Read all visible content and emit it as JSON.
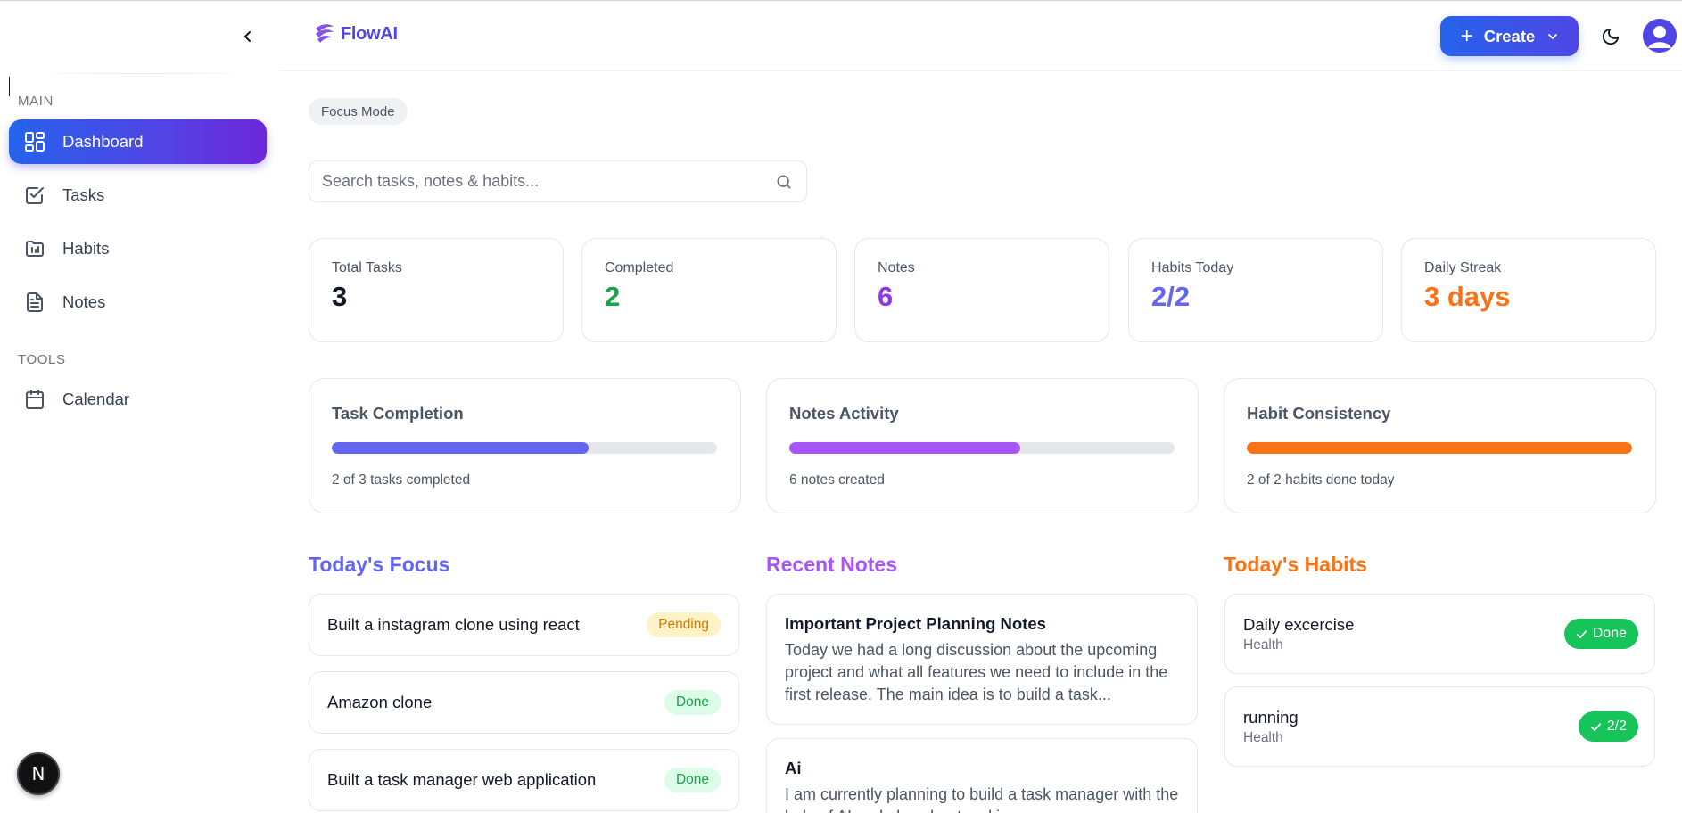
{
  "app": {
    "name": "FlowAI"
  },
  "sidebar": {
    "sections": [
      {
        "label": "MAIN"
      },
      {
        "label": "TOOLS"
      }
    ],
    "items": [
      {
        "label": "Dashboard",
        "icon": "dashboard-icon",
        "active": true
      },
      {
        "label": "Tasks",
        "icon": "checkbox-icon"
      },
      {
        "label": "Habits",
        "icon": "habit-chart-icon"
      },
      {
        "label": "Notes",
        "icon": "document-icon"
      },
      {
        "label": "Calendar",
        "icon": "calendar-icon"
      }
    ],
    "dev_badge": "N"
  },
  "header": {
    "create_label": "Create"
  },
  "focus_mode": {
    "label": "Focus Mode"
  },
  "search": {
    "placeholder": "Search tasks, notes & habits..."
  },
  "stats": [
    {
      "label": "Total Tasks",
      "value": "3",
      "color": "#111827"
    },
    {
      "label": "Completed",
      "value": "2",
      "color": "#16a34a"
    },
    {
      "label": "Notes",
      "value": "6",
      "color": "#9333ea"
    },
    {
      "label": "Habits Today",
      "value": "2/2",
      "color": "#6366f1"
    },
    {
      "label": "Daily Streak",
      "value": "3 days",
      "color": "#f97316"
    }
  ],
  "progress": [
    {
      "title": "Task Completion",
      "sub": "2 of 3 tasks completed",
      "fraction": 0.667,
      "color": "#6366f1"
    },
    {
      "title": "Notes Activity",
      "sub": "6 notes created",
      "fraction": 0.6,
      "color": "#a855f7"
    },
    {
      "title": "Habit Consistency",
      "sub": "2 of 2 habits done today",
      "fraction": 1.0,
      "color": "#f97316"
    }
  ],
  "columns": {
    "focus_title": "Today's Focus",
    "notes_title": "Recent Notes",
    "habits_title": "Today's Habits",
    "focus_color": "#6366f1",
    "notes_color": "#a855f7",
    "habits_color": "#f97316"
  },
  "tasks": [
    {
      "name": "Built a instagram clone using react",
      "status": "Pending"
    },
    {
      "name": "Amazon clone",
      "status": "Done"
    },
    {
      "name": "Built a task manager web application",
      "status": "Done"
    }
  ],
  "notes": [
    {
      "title": "Important Project Planning Notes",
      "body": "Today we had a long discussion about the upcoming project and what all features we need to include in the first release. The main idea is to build a task..."
    },
    {
      "title": "Ai",
      "body": "I am currently planning to build a task manager with the help of AI and also about making"
    }
  ],
  "habits": [
    {
      "name": "Daily excercise",
      "category": "Health",
      "action": "Done"
    },
    {
      "name": "running",
      "category": "Health",
      "action": "2/2"
    }
  ]
}
